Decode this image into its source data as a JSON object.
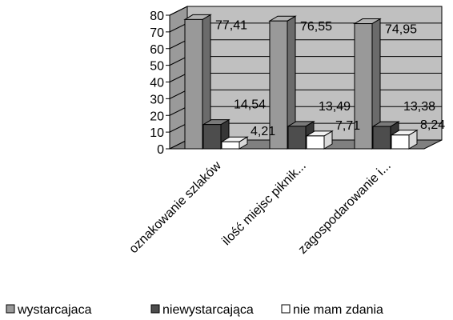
{
  "chart_data": {
    "type": "bar",
    "categories": [
      "oznakowanie szlaków",
      "ilość miejsc piknik...",
      "zagospodarowanie i..."
    ],
    "series": [
      {
        "name": "wystarcajaca",
        "values": [
          77.41,
          76.55,
          74.95
        ],
        "labels": [
          "77,41",
          "76,55",
          "74,95"
        ],
        "color": "#999999"
      },
      {
        "name": "niewystarcająca",
        "values": [
          14.54,
          13.49,
          13.38
        ],
        "labels": [
          "14,54",
          "13,49",
          "13,38"
        ],
        "color": "#4d4d4d"
      },
      {
        "name": "nie mam zdania",
        "values": [
          4.21,
          7.71,
          8.24
        ],
        "labels": [
          "4,21",
          "7,71",
          "8,24"
        ],
        "color": "#ffffff"
      }
    ],
    "yticks": [
      "0",
      "10",
      "20",
      "30",
      "40",
      "50",
      "60",
      "70",
      "80"
    ],
    "ylim": [
      0,
      80
    ],
    "grid": true,
    "legend_position": "bottom",
    "style": "3d-column"
  }
}
